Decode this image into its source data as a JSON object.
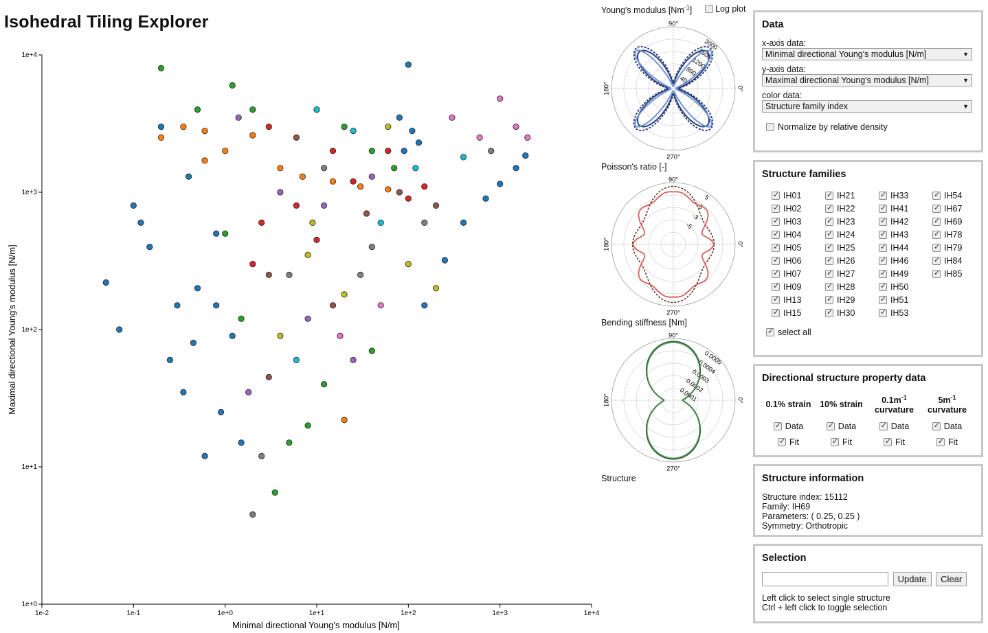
{
  "app": {
    "title": "Isohedral Tiling Explorer"
  },
  "scatter": {
    "x_label": "Minimal directional Young's modulus [N/m]",
    "y_label": "Maximal directional Young's modulus [N/m]",
    "x_ticks": [
      "1e-2",
      "1e-1",
      "1e+0",
      "1e+1",
      "1e+2",
      "1e+3",
      "1e+4"
    ],
    "y_ticks": [
      "1e+0",
      "1e+1",
      "1e+2",
      "1e+3",
      "1e+4"
    ]
  },
  "chart_data": {
    "type": "scatter",
    "x_scale": "log",
    "y_scale": "log",
    "xlim": [
      0.01,
      10000
    ],
    "ylim": [
      1,
      10000
    ],
    "xlabel": "Minimal directional Young's modulus [N/m]",
    "ylabel": "Maximal directional Young's modulus [N/m]",
    "colors": [
      "#1f77b4",
      "#ff7f0e",
      "#2ca02c",
      "#d62728",
      "#9467bd",
      "#8c564b",
      "#e377c2",
      "#7f7f7f",
      "#bcbd22",
      "#17becf"
    ],
    "points": [
      [
        0.05,
        220,
        0
      ],
      [
        0.07,
        100,
        0
      ],
      [
        0.1,
        800,
        0
      ],
      [
        0.15,
        400,
        0
      ],
      [
        0.2,
        3000,
        0
      ],
      [
        0.25,
        60,
        0
      ],
      [
        0.3,
        150,
        0
      ],
      [
        0.35,
        35,
        0
      ],
      [
        0.4,
        1300,
        0
      ],
      [
        0.5,
        200,
        0
      ],
      [
        0.6,
        12,
        0
      ],
      [
        0.8,
        500,
        0
      ],
      [
        0.9,
        25,
        0
      ],
      [
        1.2,
        90,
        0
      ],
      [
        1.5,
        15,
        0
      ],
      [
        0.2,
        2500,
        1
      ],
      [
        0.35,
        3000,
        1
      ],
      [
        0.6,
        2800,
        1
      ],
      [
        1.0,
        2000,
        1
      ],
      [
        2.0,
        2600,
        1
      ],
      [
        4.0,
        1500,
        1
      ],
      [
        7.0,
        1300,
        1
      ],
      [
        15,
        1200,
        1
      ],
      [
        30,
        1100,
        1
      ],
      [
        60,
        1050,
        1
      ],
      [
        0.2,
        8000,
        2
      ],
      [
        0.5,
        4000,
        2
      ],
      [
        1.2,
        6000,
        2
      ],
      [
        2.0,
        4000,
        2
      ],
      [
        3.5,
        6.5,
        2
      ],
      [
        5.0,
        15,
        2
      ],
      [
        8.0,
        20,
        2
      ],
      [
        12,
        40,
        2
      ],
      [
        20,
        3000,
        2
      ],
      [
        40,
        2000,
        2
      ],
      [
        70,
        1500,
        2
      ],
      [
        2.0,
        300,
        3
      ],
      [
        3.0,
        3000,
        3
      ],
      [
        6.0,
        800,
        3
      ],
      [
        10,
        450,
        3
      ],
      [
        15,
        2000,
        3
      ],
      [
        25,
        1200,
        3
      ],
      [
        60,
        2000,
        3
      ],
      [
        100,
        900,
        3
      ],
      [
        150,
        1100,
        3
      ],
      [
        4.0,
        1000,
        4
      ],
      [
        8.0,
        120,
        4
      ],
      [
        12,
        800,
        4
      ],
      [
        25,
        60,
        4
      ],
      [
        40,
        1300,
        4
      ],
      [
        3.0,
        45,
        5
      ],
      [
        6.0,
        2500,
        5
      ],
      [
        15,
        150,
        5
      ],
      [
        35,
        700,
        5
      ],
      [
        80,
        1000,
        5
      ],
      [
        200,
        800,
        5
      ],
      [
        300,
        3500,
        6
      ],
      [
        600,
        2500,
        6
      ],
      [
        1000,
        4800,
        6
      ],
      [
        1500,
        3000,
        6
      ],
      [
        2000,
        2500,
        6
      ],
      [
        2.0,
        4.5,
        7
      ],
      [
        2.5,
        12,
        7
      ],
      [
        5.0,
        250,
        7
      ],
      [
        12,
        1500,
        7
      ],
      [
        40,
        400,
        7
      ],
      [
        150,
        600,
        7
      ],
      [
        800,
        2000,
        7
      ],
      [
        4.0,
        90,
        8
      ],
      [
        8.0,
        350,
        8
      ],
      [
        20,
        180,
        8
      ],
      [
        60,
        3000,
        8
      ],
      [
        100,
        300,
        8
      ],
      [
        200,
        200,
        8
      ],
      [
        10,
        4000,
        9
      ],
      [
        25,
        2800,
        9
      ],
      [
        50,
        600,
        9
      ],
      [
        120,
        1500,
        9
      ],
      [
        400,
        1800,
        9
      ],
      [
        20,
        22,
        1
      ],
      [
        40,
        70,
        2
      ],
      [
        90,
        2000,
        0
      ],
      [
        110,
        2800,
        0
      ],
      [
        80,
        3500,
        0
      ],
      [
        130,
        2300,
        0
      ],
      [
        100,
        8500,
        0
      ],
      [
        150,
        150,
        0
      ],
      [
        250,
        320,
        0
      ],
      [
        400,
        600,
        0
      ],
      [
        700,
        900,
        0
      ],
      [
        1000,
        1150,
        0
      ],
      [
        1500,
        1500,
        0
      ],
      [
        1900,
        1850,
        0
      ],
      [
        1.5,
        120,
        2
      ],
      [
        2.5,
        600,
        3
      ],
      [
        1.8,
        35,
        4
      ],
      [
        3.0,
        250,
        5
      ],
      [
        6.0,
        60,
        9
      ],
      [
        9.0,
        600,
        8
      ],
      [
        18,
        90,
        6
      ],
      [
        30,
        250,
        7
      ],
      [
        50,
        150,
        6
      ],
      [
        0.6,
        1700,
        1
      ],
      [
        1.0,
        500,
        2
      ],
      [
        1.4,
        3500,
        4
      ],
      [
        0.8,
        150,
        0
      ],
      [
        0.45,
        80,
        0
      ],
      [
        0.12,
        600,
        0
      ]
    ]
  },
  "polar": {
    "logplot_label": "Log plot",
    "young": {
      "title": "Young's modulus [Nm",
      "title_sup": "-1",
      "title_end": "]",
      "angle_labels": [
        "90°",
        "180°",
        "270°",
        "0°"
      ],
      "ring_labels": [
        "2000",
        "1600",
        "1200",
        "800",
        "400"
      ],
      "colors": [
        "#2a3f7a",
        "#6e92d6"
      ]
    },
    "poisson": {
      "title": "Poisson's ratio [-]",
      "angle_labels": [
        "90°",
        "180°",
        "270°",
        "0°"
      ],
      "ring_labels": [
        "5",
        "3",
        "-3",
        "-5"
      ],
      "colors": [
        "#5a2a22",
        "#d4605a"
      ]
    },
    "bending": {
      "title": "Bending stiffness [Nm]",
      "angle_labels": [
        "90°",
        "180°",
        "270°",
        "0°"
      ],
      "ring_labels": [
        "0.0005",
        "0.0004",
        "0.0003",
        "0.0002",
        "0.0001"
      ],
      "colors": [
        "#2f6b3a",
        "#7aa877"
      ]
    },
    "structure_label": "Structure"
  },
  "panels": {
    "data": {
      "title": "Data",
      "x_label": "x-axis data:",
      "x_value": "Minimal directional Young's modulus [N/m]",
      "y_label": "y-axis data:",
      "y_value": "Maximal directional Young's modulus [N/m]",
      "c_label": "color data:",
      "c_value": "Structure family index",
      "normalize_label": "Normalize by relative density"
    },
    "families": {
      "title": "Structure families",
      "items": [
        "IH01",
        "IH21",
        "IH33",
        "IH54",
        "IH02",
        "IH22",
        "IH41",
        "IH67",
        "IH03",
        "IH23",
        "IH42",
        "IH69",
        "IH04",
        "IH24",
        "IH43",
        "IH78",
        "IH05",
        "IH25",
        "IH44",
        "IH79",
        "IH06",
        "IH26",
        "IH46",
        "IH84",
        "IH07",
        "IH27",
        "IH49",
        "IH85",
        "IH09",
        "IH28",
        "IH50",
        "",
        "IH13",
        "IH29",
        "IH51",
        "",
        "IH15",
        "IH30",
        "IH53",
        ""
      ],
      "select_all": "select all"
    },
    "directional": {
      "title": "Directional structure property data",
      "headers": [
        "0.1% strain",
        "10% strain",
        "0.1m",
        "5m"
      ],
      "header_sup": "-1",
      "curvature": "curvature",
      "data_label": "Data",
      "fit_label": "Fit"
    },
    "info": {
      "title": "Structure information",
      "index": "Structure index: 15112",
      "family": "Family: IH69",
      "parameters": "Parameters: ( 0.25, 0.25 )",
      "symmetry": "Symmetry: Orthotropic"
    },
    "selection": {
      "title": "Selection",
      "update": "Update",
      "clear": "Clear",
      "help1": "Left click to select single structure",
      "help2": "Ctrl + left click to toggle selection"
    }
  }
}
